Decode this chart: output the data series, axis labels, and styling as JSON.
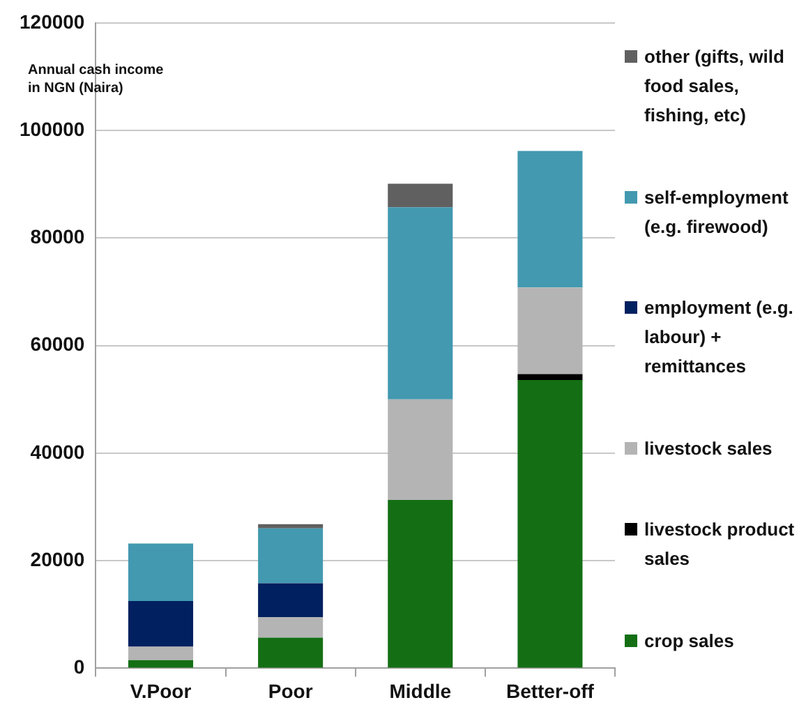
{
  "chart_data": {
    "type": "bar",
    "ylabel": "Annual cash income in NGN (Naira)",
    "categories": [
      "V.Poor",
      "Poor",
      "Middle",
      "Better-off"
    ],
    "stacked": true,
    "series": [
      {
        "name": "crop sales",
        "color": "#146f14",
        "values": [
          1500,
          5700,
          31300,
          53600
        ]
      },
      {
        "name": "livestock product sales",
        "color": "#000000",
        "values": [
          0,
          0,
          0,
          1100
        ]
      },
      {
        "name": "livestock sales",
        "color": "#b4b4b4",
        "values": [
          2500,
          3800,
          18700,
          16100
        ]
      },
      {
        "name": "employment (e.g. labour) + remittances",
        "color": "#002060",
        "values": [
          8500,
          6300,
          0,
          0
        ]
      },
      {
        "name": "self-employment (e.g. firewood)",
        "color": "#4299b0",
        "values": [
          10700,
          10200,
          35700,
          25400
        ]
      },
      {
        "name": "other (gifts, wild food sales, fishing, etc)",
        "color": "#606060",
        "values": [
          0,
          800,
          4400,
          0
        ]
      }
    ],
    "ylim": [
      0,
      120000
    ],
    "yticks": [
      0,
      20000,
      40000,
      60000,
      80000,
      100000,
      120000
    ],
    "grid": "y",
    "legend": "right"
  }
}
